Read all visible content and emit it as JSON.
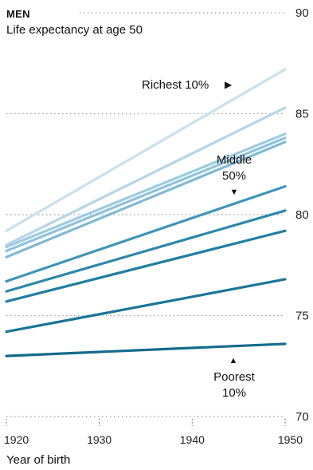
{
  "header": {
    "eyebrow": "MEN",
    "subtitle": "Life expectancy at age 50"
  },
  "chart_data": {
    "type": "line",
    "title": "MEN",
    "subtitle": "Life expectancy at age 50",
    "xlabel": "Year of birth",
    "ylabel": "",
    "xlim": [
      1920,
      1950
    ],
    "ylim": [
      70,
      90
    ],
    "x_ticks": [
      1920,
      1930,
      1940,
      1950
    ],
    "y_ticks": [
      70,
      75,
      80,
      85,
      90
    ],
    "grid": "horizontal dotted",
    "x": [
      1920,
      1950
    ],
    "series": [
      {
        "values": [
          79.2,
          87.2
        ],
        "color": "#c9e0ee"
      },
      {
        "values": [
          78.5,
          85.3
        ],
        "color": "#b5d5e8"
      },
      {
        "values": [
          78.4,
          84.0
        ],
        "color": "#9ccbe1"
      },
      {
        "values": [
          78.2,
          83.8
        ],
        "color": "#8ec2db"
      },
      {
        "values": [
          77.9,
          83.6
        ],
        "color": "#80b9d5"
      },
      {
        "values": [
          76.7,
          81.4
        ],
        "color": "#3f95b8"
      },
      {
        "values": [
          76.2,
          80.2
        ],
        "color": "#2d88ab"
      },
      {
        "values": [
          75.7,
          79.2
        ],
        "color": "#227ea2"
      },
      {
        "values": [
          74.2,
          76.8
        ],
        "color": "#1b7597"
      },
      {
        "values": [
          73.0,
          73.6
        ],
        "color": "#146b8c"
      }
    ],
    "annotations": [
      {
        "text": "Richest 10%",
        "marker": "▶"
      },
      {
        "text": "Middle",
        "text2": "50%",
        "marker": "▼"
      },
      {
        "text": "Poorest",
        "text2": "10%",
        "marker": "▲"
      }
    ]
  }
}
